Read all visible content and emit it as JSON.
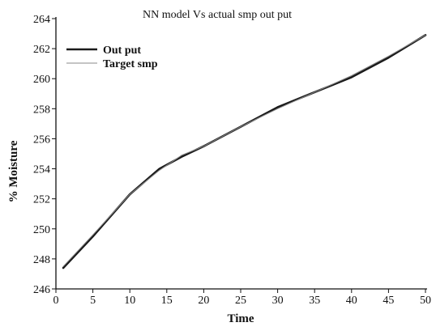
{
  "chart_data": {
    "type": "line",
    "title": "NN model Vs actual smp out put",
    "xlabel": "Time",
    "ylabel": "% Moisture",
    "xlim": [
      0,
      50
    ],
    "ylim": [
      246,
      264
    ],
    "xticks": [
      0,
      5,
      10,
      15,
      20,
      25,
      30,
      35,
      40,
      45,
      50
    ],
    "yticks": [
      246,
      248,
      250,
      252,
      254,
      256,
      258,
      260,
      262,
      264
    ],
    "grid": false,
    "legend_position": "top-left",
    "series": [
      {
        "name": "Out put",
        "color": "#1a1a1a",
        "style": "thick",
        "x": [
          1,
          5,
          10,
          14,
          17,
          20,
          25,
          30,
          35,
          40,
          45,
          50
        ],
        "values": [
          247.4,
          249.5,
          252.3,
          254.0,
          254.8,
          255.5,
          256.8,
          258.1,
          259.1,
          260.1,
          261.4,
          262.9
        ]
      },
      {
        "name": "Target smp",
        "color": "#888888",
        "style": "thin",
        "x": [
          1,
          5,
          10,
          14,
          17,
          20,
          25,
          30,
          35,
          40,
          45,
          50
        ],
        "values": [
          247.5,
          249.6,
          252.3,
          253.9,
          254.9,
          255.5,
          256.8,
          258.0,
          259.1,
          260.2,
          261.5,
          262.9
        ]
      }
    ]
  }
}
